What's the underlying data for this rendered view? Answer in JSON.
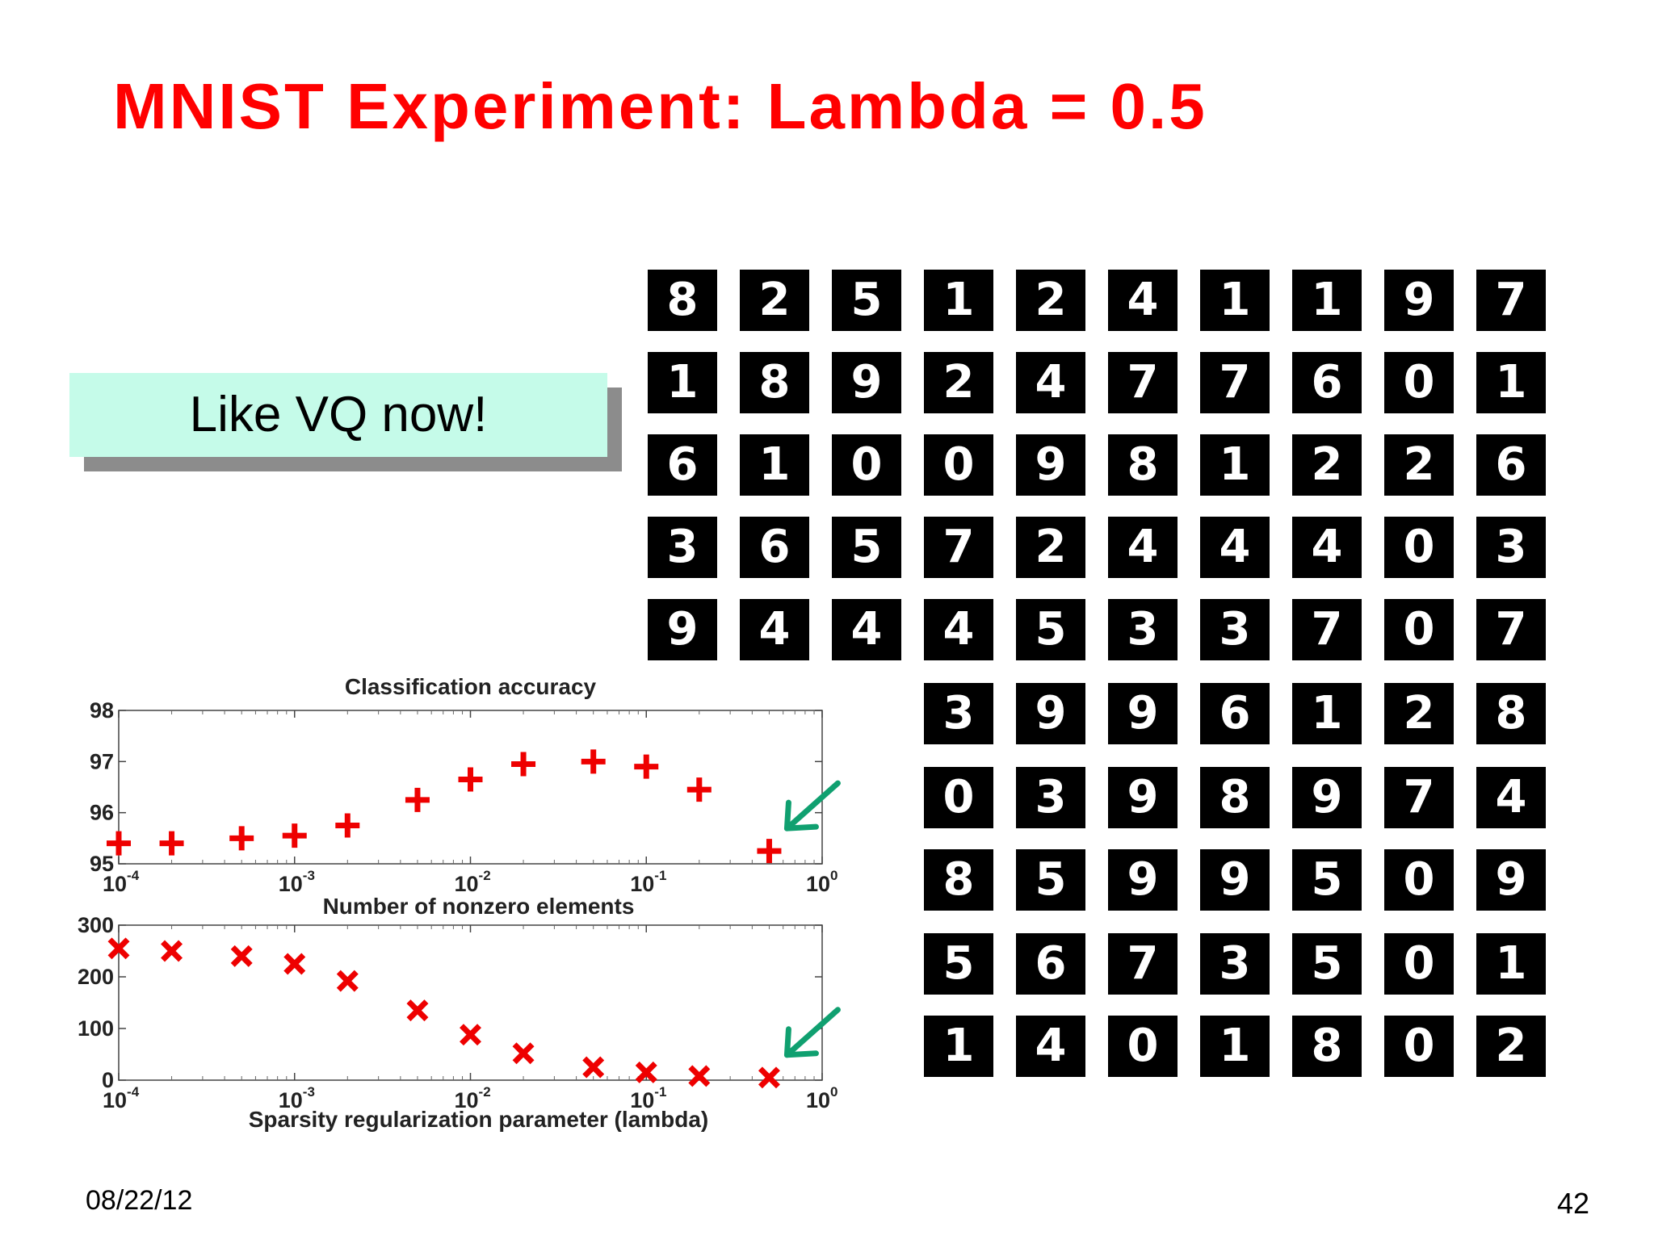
{
  "slide": {
    "title": "MNIST Experiment: Lambda = 0.5",
    "callout": "Like VQ now!",
    "date": "08/22/12",
    "page_number": "42",
    "title_color": "#ff0000",
    "callout_color": "#c5fbe9",
    "arrow_color": "#10a070"
  },
  "digit_grid": {
    "rows": [
      [
        "8",
        "2",
        "5",
        "1",
        "2",
        "4",
        "1",
        "1",
        "9",
        "7"
      ],
      [
        "1",
        "8",
        "9",
        "2",
        "4",
        "7",
        "7",
        "6",
        "0",
        "1"
      ],
      [
        "6",
        "1",
        "0",
        "0",
        "9",
        "8",
        "1",
        "2",
        "2",
        "6"
      ],
      [
        "3",
        "6",
        "5",
        "7",
        "2",
        "4",
        "4",
        "4",
        "0",
        "3"
      ],
      [
        "9",
        "4",
        "4",
        "4",
        "5",
        "3",
        "3",
        "7",
        "0",
        "7"
      ],
      [
        "3",
        "9",
        "9",
        "6",
        "1",
        "2",
        "8"
      ],
      [
        "0",
        "3",
        "9",
        "8",
        "9",
        "7",
        "4"
      ],
      [
        "8",
        "5",
        "9",
        "9",
        "5",
        "0",
        "9"
      ],
      [
        "5",
        "6",
        "7",
        "3",
        "5",
        "0",
        "1"
      ],
      [
        "1",
        "4",
        "0",
        "1",
        "8",
        "0",
        "2"
      ]
    ]
  },
  "chart_data": [
    {
      "type": "scatter",
      "title": "Classification accuracy",
      "xlabel": "Number of nonzero elements",
      "ylabel": "",
      "xscale": "log",
      "xlim": [
        0.0001,
        1
      ],
      "ylim": [
        95,
        98
      ],
      "yticks": [
        "98",
        "97",
        "96",
        "95"
      ],
      "xticks": [
        {
          "base": "10",
          "exp": "-4"
        },
        {
          "base": "10",
          "exp": "-3"
        },
        {
          "base": "10",
          "exp": "-2"
        },
        {
          "base": "10",
          "exp": "-1"
        },
        {
          "base": "10",
          "exp": "0"
        }
      ],
      "marker": "plus",
      "color": "#ee0000",
      "x": [
        0.0001,
        0.0002,
        0.0005,
        0.001,
        0.002,
        0.005,
        0.01,
        0.02,
        0.05,
        0.1,
        0.2,
        0.5
      ],
      "y": [
        95.4,
        95.4,
        95.5,
        95.55,
        95.75,
        96.25,
        96.65,
        96.95,
        97.0,
        96.9,
        96.45,
        95.25
      ],
      "annotation": "green arrow pointing to last point"
    },
    {
      "type": "scatter",
      "title": "",
      "xlabel": "Sparsity regularization parameter (lambda)",
      "ylabel": "",
      "xscale": "log",
      "xlim": [
        0.0001,
        1
      ],
      "ylim": [
        0,
        300
      ],
      "yticks": [
        "300",
        "200",
        "100",
        "0"
      ],
      "xticks": [
        {
          "base": "10",
          "exp": "-4"
        },
        {
          "base": "10",
          "exp": "-3"
        },
        {
          "base": "10",
          "exp": "-2"
        },
        {
          "base": "10",
          "exp": "-1"
        },
        {
          "base": "10",
          "exp": "0"
        }
      ],
      "marker": "x",
      "color": "#ee0000",
      "x": [
        0.0001,
        0.0002,
        0.0005,
        0.001,
        0.002,
        0.005,
        0.01,
        0.02,
        0.05,
        0.1,
        0.2,
        0.5
      ],
      "y": [
        255,
        250,
        240,
        225,
        192,
        135,
        88,
        52,
        25,
        15,
        8,
        5
      ],
      "annotation": "green arrow pointing to last point"
    }
  ]
}
